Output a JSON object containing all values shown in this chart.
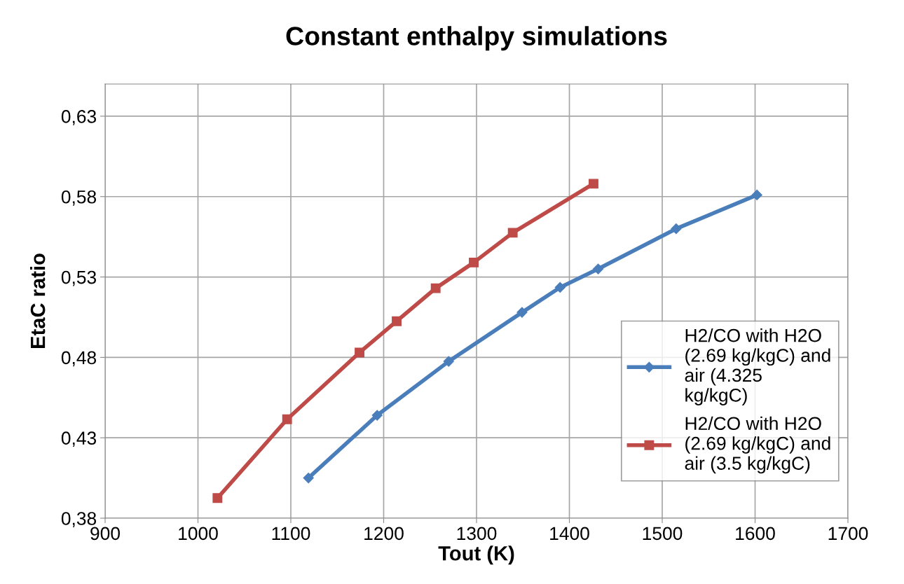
{
  "chart_data": {
    "type": "line",
    "title": "Constant enthalpy simulations",
    "xlabel": "Tout (K)",
    "ylabel": "EtaC ratio",
    "series": [
      {
        "name": "H2/CO with H2O (2.69 kg/kgC) and air (4.325 kg/kgC)",
        "color": "#4a7ebb",
        "marker": "diamond",
        "x": [
          1119,
          1193,
          1270,
          1349,
          1390,
          1431,
          1515,
          1602
        ],
        "values": [
          0.405,
          0.444,
          0.4775,
          0.508,
          0.5235,
          0.535,
          0.56,
          0.581
        ]
      },
      {
        "name": "H2/CO with H2O (2.69 kg/kgC) and air (3.5 kg/kgC)",
        "color": "#be4b48",
        "marker": "square",
        "x": [
          1021,
          1096,
          1174,
          1214,
          1256,
          1297,
          1339,
          1426
        ],
        "values": [
          0.3925,
          0.4415,
          0.483,
          0.5025,
          0.523,
          0.539,
          0.5575,
          0.588
        ]
      }
    ],
    "xlim": [
      900,
      1700
    ],
    "xticks": [
      900,
      1000,
      1100,
      1200,
      1300,
      1400,
      1500,
      1600,
      1700
    ],
    "ylim": [
      0.38,
      0.65
    ],
    "yticks": [
      {
        "value": 0.38,
        "label": "0,38"
      },
      {
        "value": 0.43,
        "label": "0,43"
      },
      {
        "value": 0.48,
        "label": "0,48"
      },
      {
        "value": 0.53,
        "label": "0,53"
      },
      {
        "value": 0.58,
        "label": "0,58"
      },
      {
        "value": 0.63,
        "label": "0,63"
      }
    ],
    "grid": true,
    "legend": "right",
    "line_style": "solid"
  }
}
